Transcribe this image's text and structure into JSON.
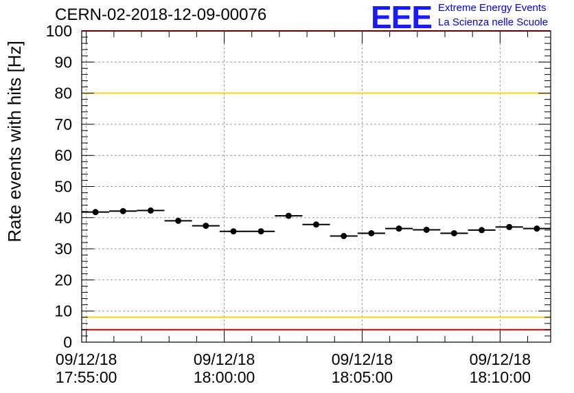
{
  "header": {
    "run_title": "CERN-02-2018-12-09-00076",
    "logo_mark": "EEE",
    "logo_line1": "Extreme Energy Events",
    "logo_line2": "La Scienza nelle Scuole"
  },
  "chart_data": {
    "type": "scatter",
    "title": "CERN-02-2018-12-09-00076",
    "xlabel": "",
    "ylabel": "Rate events with hits [Hz]",
    "x_is_time": true,
    "xlim": [
      "2018-12-09 17:54:50",
      "2018-12-09 18:11:50"
    ],
    "ylim": [
      0,
      100
    ],
    "y_ticks": [
      0,
      10,
      20,
      30,
      40,
      50,
      60,
      70,
      80,
      90,
      100
    ],
    "x_tick_labels": [
      {
        "date": "09/12/18",
        "time": "17:55:00"
      },
      {
        "date": "09/12/18",
        "time": "18:00:00"
      },
      {
        "date": "09/12/18",
        "time": "18:05:00"
      },
      {
        "date": "09/12/18",
        "time": "18:10:00"
      }
    ],
    "x_tick_times": [
      "17:55:00",
      "18:00:00",
      "18:05:00",
      "18:10:00"
    ],
    "grid": true,
    "points": [
      {
        "x_start": "17:54:50",
        "x_end": "17:55:50",
        "y": 41.8
      },
      {
        "x_start": "17:55:50",
        "x_end": "17:56:50",
        "y": 42.1
      },
      {
        "x_start": "17:56:50",
        "x_end": "17:57:50",
        "y": 42.3
      },
      {
        "x_start": "17:57:50",
        "x_end": "17:58:50",
        "y": 39.0
      },
      {
        "x_start": "17:58:50",
        "x_end": "17:59:50",
        "y": 37.4
      },
      {
        "x_start": "17:59:50",
        "x_end": "18:00:50",
        "y": 35.6
      },
      {
        "x_start": "18:00:50",
        "x_end": "18:01:50",
        "y": 35.6
      },
      {
        "x_start": "18:01:50",
        "x_end": "18:02:50",
        "y": 40.6
      },
      {
        "x_start": "18:02:50",
        "x_end": "18:03:50",
        "y": 37.8
      },
      {
        "x_start": "18:03:50",
        "x_end": "18:04:50",
        "y": 34.1
      },
      {
        "x_start": "18:04:50",
        "x_end": "18:05:50",
        "y": 35.0
      },
      {
        "x_start": "18:05:50",
        "x_end": "18:06:50",
        "y": 36.5
      },
      {
        "x_start": "18:06:50",
        "x_end": "18:07:50",
        "y": 36.1
      },
      {
        "x_start": "18:07:50",
        "x_end": "18:08:50",
        "y": 35.0
      },
      {
        "x_start": "18:08:50",
        "x_end": "18:09:50",
        "y": 36.0
      },
      {
        "x_start": "18:09:50",
        "x_end": "18:10:50",
        "y": 37.0
      },
      {
        "x_start": "18:10:50",
        "x_end": "18:11:50",
        "y": 36.5
      }
    ],
    "reference_lines": [
      {
        "y": 100,
        "color": "#ff0000"
      },
      {
        "y": 80,
        "color": "#ffd21a"
      },
      {
        "y": 8,
        "color": "#ffd21a"
      },
      {
        "y": 4,
        "color": "#ff0000"
      }
    ]
  }
}
